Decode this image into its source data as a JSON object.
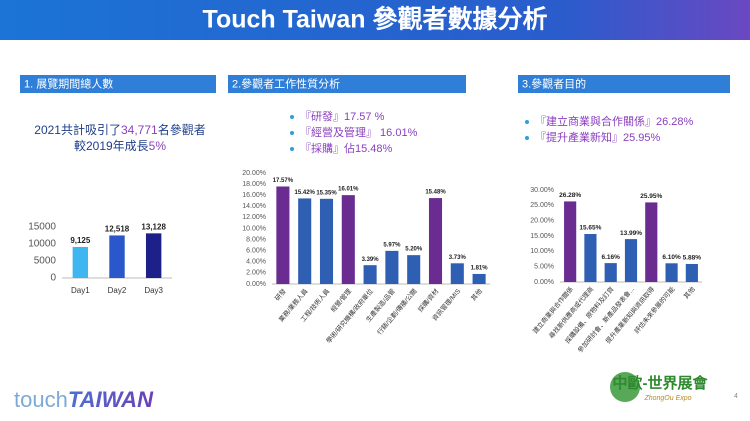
{
  "header": {
    "title": "Touch Taiwan 參觀者數據分析"
  },
  "panels": [
    {
      "heading": "1. 展覽期間總人數",
      "lines": [
        [
          "2021共計吸引了",
          "34,771",
          "名參觀者"
        ],
        [
          "較2019年成長",
          "5%"
        ]
      ]
    },
    {
      "heading": "2.參觀者工作性質分析",
      "bullets": [
        "『研發』17.57 %",
        "『經營及管理』 16.01%",
        "『採購』佔15.48%"
      ]
    },
    {
      "heading": "3.參觀者目的",
      "bullets": [
        "『建立商業與合作關係』26.28%",
        "『提升產業新知』25.95%"
      ]
    }
  ],
  "chart_data": [
    {
      "type": "bar",
      "categories": [
        "Day1",
        "Day2",
        "Day3"
      ],
      "values": [
        9125,
        12518,
        13128
      ],
      "value_labels": [
        "9,125",
        "12,518",
        "13,128"
      ],
      "colors": [
        "#3fb6ef",
        "#2a57c9",
        "#1c2088"
      ],
      "ylim": [
        0,
        15000
      ],
      "yticks": [
        0,
        5000,
        10000,
        15000
      ],
      "grid": false
    },
    {
      "type": "bar",
      "categories": [
        "研發",
        "業務/業務人員",
        "工程/技術人員",
        "經營/管理",
        "學術/研究機構/政府單位",
        "生產製造/品管",
        "行銷/企劃/傳播/公關",
        "採購/資材",
        "資訊管理/MIS",
        "其他"
      ],
      "values": [
        17.57,
        15.42,
        15.35,
        16.01,
        3.39,
        5.97,
        5.2,
        15.48,
        3.73,
        1.81
      ],
      "value_labels": [
        "17.57%",
        "15.42%",
        "15.35%",
        "16.01%",
        "3.39%",
        "5.97%",
        "5.20%",
        "15.48%",
        "3.73%",
        "1.81%"
      ],
      "colors": [
        "#6a2c91",
        "#2f5fb3",
        "#2f5fb3",
        "#6a2c91",
        "#2f5fb3",
        "#2f5fb3",
        "#2f5fb3",
        "#6a2c91",
        "#2f5fb3",
        "#2f5fb3"
      ],
      "ylim": [
        0,
        20
      ],
      "yticks": [
        {
          "value": 0,
          "label": "0.00%"
        },
        {
          "value": 2,
          "label": "2.00%"
        },
        {
          "value": 4,
          "label": "4.00%"
        },
        {
          "value": 6,
          "label": "6.00%"
        },
        {
          "value": 8,
          "label": "8.00%"
        },
        {
          "value": 10,
          "label": "10.00%"
        },
        {
          "value": 12,
          "label": "12.00%"
        },
        {
          "value": 14,
          "label": "14.00%"
        },
        {
          "value": 16,
          "label": "16.00%"
        },
        {
          "value": 18,
          "label": "18.00%"
        },
        {
          "value": 20,
          "label": "20.00%"
        }
      ],
      "grid": false
    },
    {
      "type": "bar",
      "categories": [
        "建立商業與合作關係",
        "尋找新供應商或代理商",
        "採購設備、原物料及訂貨",
        "參加研討會、新產品發表會...",
        "提升產業新知與資訊取得",
        "評估未來參展的可能",
        "其他"
      ],
      "values": [
        26.28,
        15.65,
        6.16,
        13.99,
        25.95,
        6.1,
        5.88
      ],
      "value_labels": [
        "26.28%",
        "15.65%",
        "6.16%",
        "13.99%",
        "25.95%",
        "6.10%",
        "5.88%"
      ],
      "colors": [
        "#6a2c91",
        "#2f5fb3",
        "#2f5fb3",
        "#2f5fb3",
        "#6a2c91",
        "#2f5fb3",
        "#2f5fb3"
      ],
      "ylim": [
        0,
        30
      ],
      "yticks": [
        {
          "value": 0,
          "label": "0.00%"
        },
        {
          "value": 5,
          "label": "5.00%"
        },
        {
          "value": 10,
          "label": "10.00%"
        },
        {
          "value": 15,
          "label": "15.00%"
        },
        {
          "value": 20,
          "label": "20.00%"
        },
        {
          "value": 25,
          "label": "25.00%"
        },
        {
          "value": 30,
          "label": "30.00%"
        }
      ],
      "grid": false
    }
  ],
  "footer": {
    "brand": [
      "touch",
      "TAIWAN"
    ],
    "partner": "中歐-世界展會",
    "partner_sub": "ZhongOu Expo",
    "page": "4"
  }
}
